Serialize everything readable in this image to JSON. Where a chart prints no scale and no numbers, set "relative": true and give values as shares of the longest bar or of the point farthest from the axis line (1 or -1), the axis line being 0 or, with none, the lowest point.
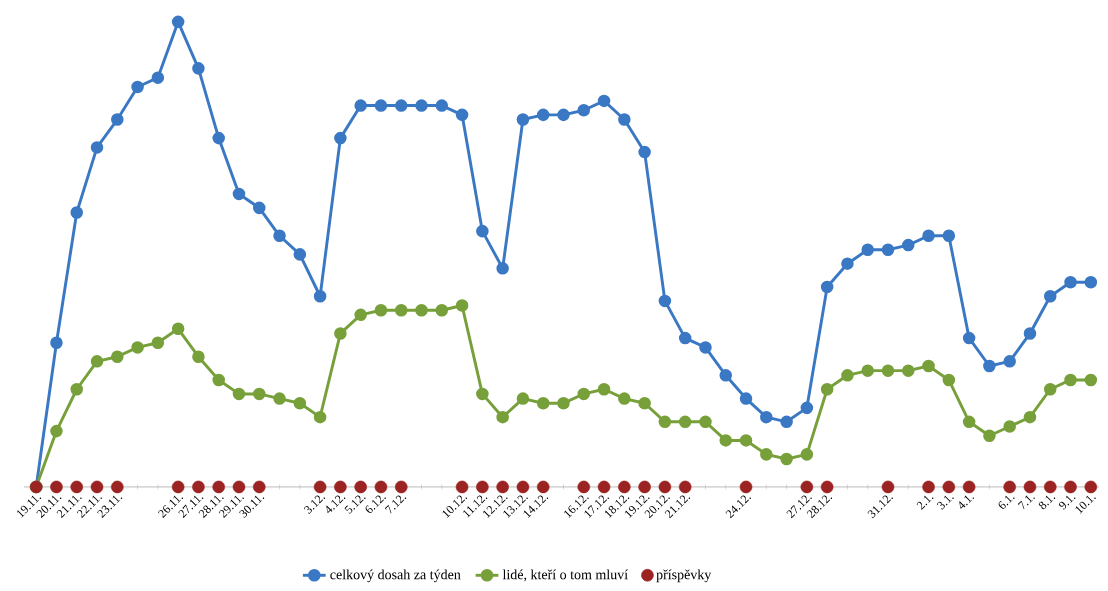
{
  "chart_data": {
    "type": "line",
    "relative": true,
    "marker": "circle",
    "line_style": "solid",
    "legend": "bottom",
    "grid": false,
    "categories": [
      "19.11.",
      "20.11.",
      "21.11.",
      "22.11.",
      "23.11.",
      null,
      null,
      "26.11.",
      "27.11.",
      "28.11.",
      "29.11.",
      "30.11.",
      null,
      null,
      "3.12.",
      "4.12.",
      "5.12.",
      "6.12.",
      "7.12.",
      null,
      null,
      "10.12.",
      "11.12.",
      "12.12.",
      "13.12.",
      "14.12.",
      null,
      "16.12.",
      "17.12.",
      "18.12.",
      "19.12.",
      "20.12.",
      "21.12.",
      null,
      null,
      "24.12.",
      null,
      null,
      "27.12.",
      "28.12.",
      null,
      null,
      "31.12.",
      null,
      "2.1.",
      "3.1.",
      "4.1.",
      null,
      "6.1.",
      "7.1.",
      "8.1.",
      "9.1.",
      "10.1."
    ],
    "series": [
      {
        "name": "celkový dosah za týden",
        "color": "#3a78c4",
        "values": [
          0,
          0.31,
          0.59,
          0.73,
          0.79,
          0.86,
          0.88,
          1.0,
          0.9,
          0.75,
          0.63,
          0.6,
          0.54,
          0.5,
          0.41,
          0.75,
          0.82,
          0.82,
          0.82,
          0.82,
          0.82,
          0.8,
          0.55,
          0.47,
          0.79,
          0.8,
          0.8,
          0.81,
          0.83,
          0.79,
          0.72,
          0.4,
          0.32,
          0.3,
          0.24,
          0.19,
          0.15,
          0.14,
          0.17,
          0.43,
          0.48,
          0.51,
          0.51,
          0.52,
          0.54,
          0.54,
          0.32,
          0.26,
          0.27,
          0.33,
          0.41,
          0.44,
          0.44
        ]
      },
      {
        "name": "lidé, kteří o tom mluví",
        "color": "#77a03a",
        "values": [
          0,
          0.12,
          0.21,
          0.27,
          0.28,
          0.3,
          0.31,
          0.34,
          0.28,
          0.23,
          0.2,
          0.2,
          0.19,
          0.18,
          0.15,
          0.33,
          0.37,
          0.38,
          0.38,
          0.38,
          0.38,
          0.39,
          0.2,
          0.15,
          0.19,
          0.18,
          0.18,
          0.2,
          0.21,
          0.19,
          0.18,
          0.14,
          0.14,
          0.14,
          0.1,
          0.1,
          0.07,
          0.06,
          0.07,
          0.21,
          0.24,
          0.25,
          0.25,
          0.25,
          0.26,
          0.23,
          0.14,
          0.11,
          0.13,
          0.15,
          0.21,
          0.23,
          0.23
        ]
      },
      {
        "name": "příspěvky",
        "type": "scatter",
        "color": "#9b2423",
        "values": [
          0,
          0,
          0,
          0,
          0,
          null,
          null,
          0,
          0,
          0,
          0,
          0,
          null,
          null,
          0,
          0,
          0,
          0,
          0,
          null,
          null,
          0,
          0,
          0,
          0,
          0,
          null,
          0,
          0,
          0,
          0,
          0,
          0,
          null,
          null,
          0,
          null,
          null,
          0,
          0,
          null,
          null,
          0,
          null,
          0,
          0,
          0,
          null,
          0,
          0,
          0,
          0,
          0
        ]
      }
    ]
  }
}
